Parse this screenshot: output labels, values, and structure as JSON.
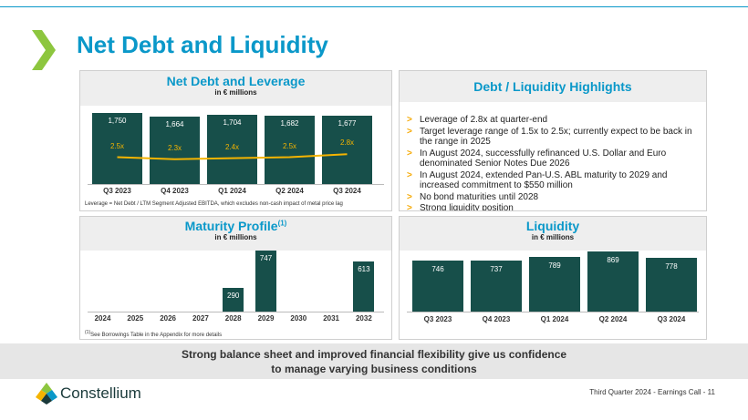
{
  "page": {
    "title": "Net Debt and Liquidity",
    "banner_line1": "Strong balance sheet and improved financial flexibility give us confidence",
    "banner_line2": "to manage varying business conditions",
    "company": "Constellium",
    "footer": "Third Quarter 2024 -  Earnings Call - 11"
  },
  "colors": {
    "accent": "#0a98c9",
    "bar": "#174f4a",
    "leverage_line": "#f5b400",
    "bullet": "#f5a800"
  },
  "highlights": {
    "title": "Debt / Liquidity Highlights",
    "bullet_symbol": ">",
    "items": [
      "Leverage of 2.8x at quarter-end",
      "Target leverage range of 1.5x to 2.5x; currently expect to be back in the range in 2025",
      "In August 2024, successfully refinanced U.S. Dollar and Euro denominated Senior Notes Due 2026",
      "In August 2024, extended Pan-U.S. ABL maturity to 2029 and increased commitment to $550 million",
      "No bond maturities until 2028",
      "Strong liquidity position"
    ]
  },
  "chart_data": [
    {
      "type": "bar",
      "title": "Net Debt and Leverage",
      "subtitle": "in € millions",
      "categories": [
        "Q3 2023",
        "Q4 2023",
        "Q1 2024",
        "Q2 2024",
        "Q3 2024"
      ],
      "series": [
        {
          "name": "Net Debt",
          "values": [
            1750,
            1664,
            1704,
            1682,
            1677
          ],
          "labels": [
            "1,750",
            "1,664",
            "1,704",
            "1,682",
            "1,677"
          ]
        },
        {
          "name": "Leverage",
          "type": "line",
          "values": [
            2.5,
            2.3,
            2.4,
            2.5,
            2.8
          ],
          "labels": [
            "2.5x",
            "2.3x",
            "2.4x",
            "2.5x",
            "2.8x"
          ]
        }
      ],
      "ylim": [
        0,
        1800
      ],
      "leverage_ylim": [
        0,
        6
      ],
      "footnote": "Leverage = Net Debt / LTM Segment Adjusted EBITDA, which excludes non-cash impact of metal price lag"
    },
    {
      "type": "bar",
      "title": "Maturity Profile",
      "title_sup": "(1)",
      "subtitle": "in € millions",
      "categories": [
        "2024",
        "2025",
        "2026",
        "2027",
        "2028",
        "2029",
        "2030",
        "2031",
        "2032"
      ],
      "values": [
        0,
        0,
        0,
        0,
        290,
        747,
        0,
        0,
        613
      ],
      "ylim": [
        0,
        800
      ],
      "footnote_mark": "(1)",
      "footnote": "See Borrowings Table in the Appendix for more details"
    },
    {
      "type": "bar",
      "title": "Liquidity",
      "subtitle": "in € millions",
      "categories": [
        "Q3 2023",
        "Q4 2023",
        "Q1 2024",
        "Q2 2024",
        "Q3 2024"
      ],
      "values": [
        746,
        737,
        789,
        869,
        778
      ],
      "ylim": [
        0,
        900
      ]
    }
  ]
}
